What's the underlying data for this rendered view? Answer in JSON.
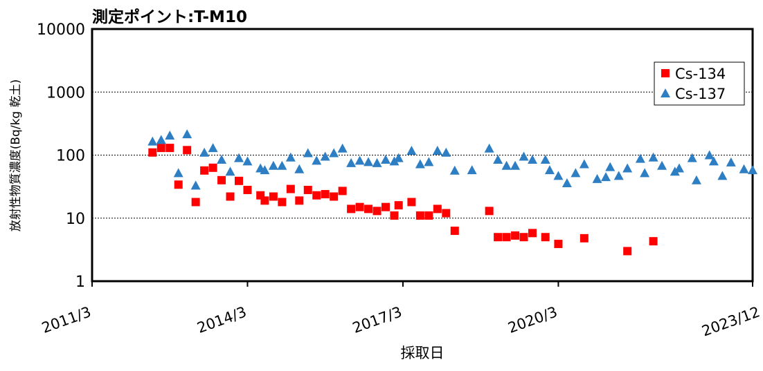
{
  "chart_data": {
    "type": "scatter",
    "title": "測定ポイント:T-M10",
    "xlabel": "採取日",
    "ylabel": "放射性物質濃度(Bq/kg 乾土)",
    "xlim": [
      "2011-03",
      "2023-12"
    ],
    "xticks": [
      {
        "value": "2011-03",
        "label": "2011/3"
      },
      {
        "value": "2014-03",
        "label": "2014/3"
      },
      {
        "value": "2017-03",
        "label": "2017/3"
      },
      {
        "value": "2020-03",
        "label": "2020/3"
      },
      {
        "value": "2023-12",
        "label": "2023/12"
      }
    ],
    "ylim": [
      1,
      10000
    ],
    "yticks": [
      1,
      10,
      100,
      1000,
      10000
    ],
    "log_y": true,
    "grid": true,
    "legend": "upper right",
    "series": [
      {
        "name": "Cs-134",
        "color": "#ff0000",
        "marker": "square",
        "x": [
          "2012-05",
          "2012-07",
          "2012-09",
          "2012-11",
          "2013-01",
          "2013-03",
          "2013-05",
          "2013-07",
          "2013-09",
          "2013-11",
          "2014-01",
          "2014-03",
          "2014-06",
          "2014-07",
          "2014-09",
          "2014-11",
          "2015-01",
          "2015-03",
          "2015-05",
          "2015-07",
          "2015-09",
          "2015-11",
          "2016-01",
          "2016-03",
          "2016-05",
          "2016-07",
          "2016-09",
          "2016-11",
          "2017-01",
          "2017-02",
          "2017-05",
          "2017-07",
          "2017-09",
          "2017-11",
          "2018-01",
          "2018-03",
          "2018-11",
          "2019-01",
          "2019-03",
          "2019-05",
          "2019-07",
          "2019-09",
          "2019-12",
          "2020-03",
          "2020-09",
          "2021-07",
          "2022-01"
        ],
        "values": [
          110,
          130,
          130,
          34,
          120,
          18,
          57,
          63,
          40,
          22,
          39,
          28,
          23,
          19,
          22,
          18,
          29,
          19,
          28,
          23,
          24,
          22,
          27,
          14,
          15,
          14,
          13,
          15,
          11,
          16,
          18,
          11,
          11,
          14,
          12,
          6.3,
          13,
          5,
          5,
          5.3,
          5,
          5.8,
          5,
          3.9,
          4.8,
          3,
          4.3
        ]
      },
      {
        "name": "Cs-137",
        "color": "#2e7ec4",
        "marker": "triangle",
        "x": [
          "2012-05",
          "2012-07",
          "2012-09",
          "2012-11",
          "2013-01",
          "2013-03",
          "2013-05",
          "2013-07",
          "2013-09",
          "2013-11",
          "2014-01",
          "2014-03",
          "2014-06",
          "2014-07",
          "2014-09",
          "2014-11",
          "2015-01",
          "2015-03",
          "2015-05",
          "2015-07",
          "2015-09",
          "2015-11",
          "2016-01",
          "2016-03",
          "2016-05",
          "2016-07",
          "2016-09",
          "2016-11",
          "2017-01",
          "2017-02",
          "2017-05",
          "2017-07",
          "2017-09",
          "2017-11",
          "2018-01",
          "2018-03",
          "2018-07",
          "2018-11",
          "2019-01",
          "2019-03",
          "2019-05",
          "2019-07",
          "2019-09",
          "2019-12",
          "2020-01",
          "2020-03",
          "2020-05",
          "2020-07",
          "2020-09",
          "2020-12",
          "2021-02",
          "2021-03",
          "2021-05",
          "2021-07",
          "2021-10",
          "2021-11",
          "2022-01",
          "2022-03",
          "2022-06",
          "2022-07",
          "2022-10",
          "2022-11",
          "2023-02",
          "2023-03",
          "2023-05",
          "2023-07",
          "2023-10",
          "2023-12"
        ],
        "values": [
          165,
          175,
          205,
          52,
          215,
          33,
          110,
          130,
          85,
          55,
          90,
          80,
          62,
          58,
          68,
          68,
          92,
          60,
          108,
          82,
          95,
          108,
          128,
          75,
          82,
          78,
          75,
          85,
          80,
          90,
          118,
          72,
          78,
          118,
          110,
          57,
          58,
          128,
          85,
          68,
          68,
          95,
          85,
          85,
          58,
          47,
          36,
          52,
          72,
          42,
          45,
          65,
          47,
          62,
          88,
          52,
          92,
          68,
          55,
          62,
          90,
          40,
          100,
          80,
          47,
          77,
          60,
          58
        ]
      }
    ]
  }
}
